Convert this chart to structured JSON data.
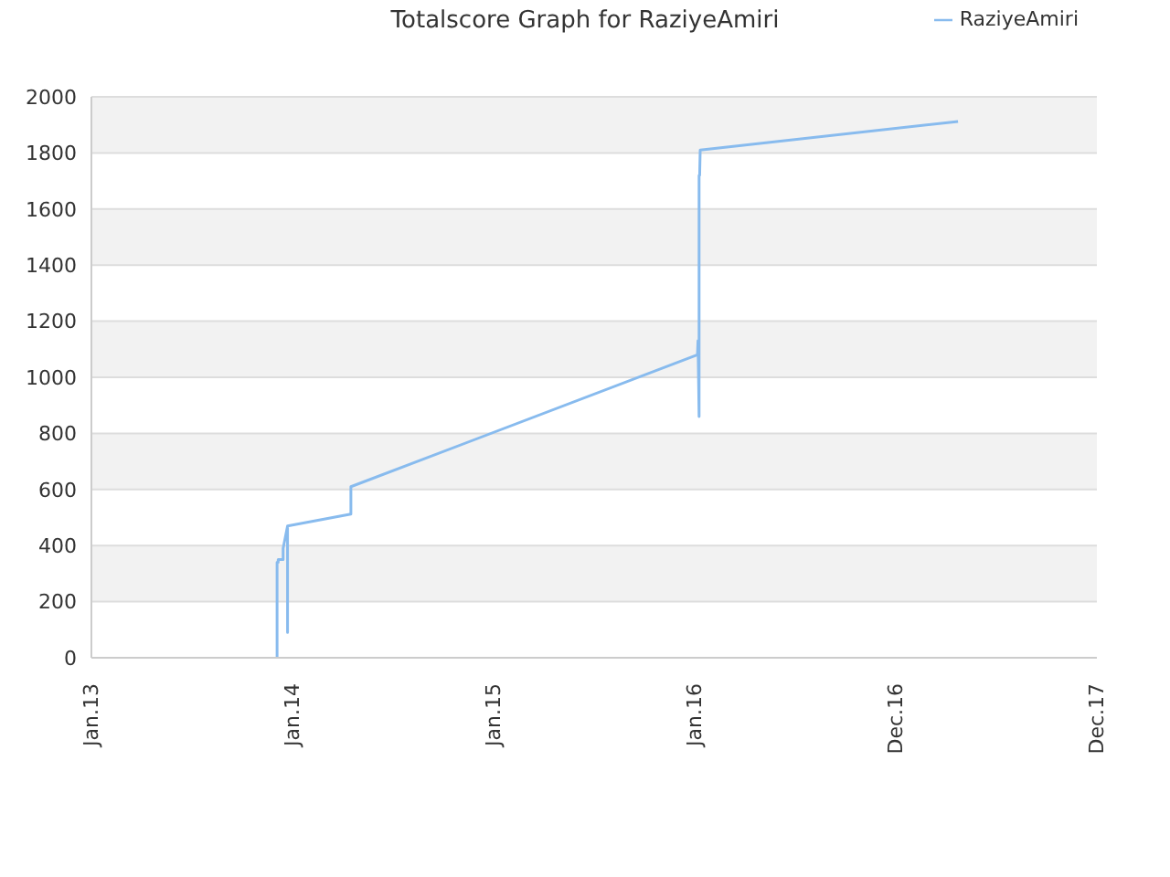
{
  "chart_data": {
    "type": "line",
    "title": "Totalscore Graph for RaziyeAmiri",
    "series": [
      {
        "name": "RaziyeAmiri",
        "color": "#88bbee",
        "x": [
          "2013-12-04",
          "2013-12-04",
          "2013-12-06",
          "2013-12-06",
          "2013-12-15",
          "2013-12-15",
          "2013-12-23",
          "2013-12-23",
          "2013-12-23",
          "2014-04-17",
          "2014-04-17",
          "2016-01-06",
          "2016-01-07",
          "2016-01-09",
          "2016-01-09",
          "2016-01-09",
          "2016-01-10",
          "2016-01-11",
          "2017-04-23"
        ],
        "values": [
          0,
          340,
          340,
          350,
          350,
          390,
          470,
          90,
          470,
          512,
          610,
          1080,
          1130,
          860,
          1640,
          1720,
          1720,
          1810,
          1912
        ]
      }
    ],
    "xlim": [
      "2013-01-01",
      "2017-12-31"
    ],
    "xticks": [
      {
        "value": "2013-01-01",
        "label": "Jan.13"
      },
      {
        "value": "2014-01-01",
        "label": "Jan.14"
      },
      {
        "value": "2015-01-01",
        "label": "Jan.15"
      },
      {
        "value": "2016-01-01",
        "label": "Jan.16"
      },
      {
        "value": "2016-12-31",
        "label": "Dec.16"
      },
      {
        "value": "2017-12-31",
        "label": "Dec.17"
      }
    ],
    "ylim": [
      0,
      2000
    ],
    "yticks": [
      0,
      200,
      400,
      600,
      800,
      1000,
      1200,
      1400,
      1600,
      1800,
      2000
    ],
    "grid": "y",
    "legend": "top right",
    "marker": "none",
    "line_style": "solid"
  }
}
